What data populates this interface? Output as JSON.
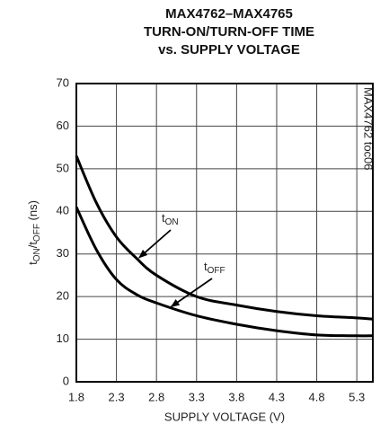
{
  "chart_data": {
    "type": "line",
    "title": [
      "MAX4762–MAX4765",
      "TURN-ON/TURN-OFF TIME",
      "vs. SUPPLY VOLTAGE"
    ],
    "x_label": "SUPPLY VOLTAGE (V)",
    "y_label": [
      {
        "text": "t"
      },
      {
        "text": "ON",
        "sub": true
      },
      {
        "text": "/t"
      },
      {
        "text": "OFF",
        "sub": true
      },
      {
        "text": " (ns)"
      }
    ],
    "side_note": "MAX4762 toc06",
    "xlim": [
      1.8,
      5.5
    ],
    "ylim": [
      0,
      70
    ],
    "xticks": [
      1.8,
      2.3,
      2.8,
      3.3,
      3.8,
      4.3,
      4.8,
      5.3
    ],
    "yticks": [
      0,
      10,
      20,
      30,
      40,
      50,
      60,
      70
    ],
    "grid": true,
    "series": [
      {
        "name": [
          {
            "text": "t"
          },
          {
            "text": "ON",
            "sub": true
          }
        ],
        "color": "#000000",
        "x": [
          1.8,
          2.05,
          2.3,
          2.55,
          2.8,
          3.3,
          3.8,
          4.3,
          4.8,
          5.3,
          5.5
        ],
        "values": [
          53,
          42,
          34,
          29,
          25,
          20,
          18,
          16.5,
          15.5,
          15,
          14.7
        ]
      },
      {
        "name": [
          {
            "text": "t"
          },
          {
            "text": "OFF",
            "sub": true
          }
        ],
        "color": "#000000",
        "x": [
          1.8,
          2.05,
          2.3,
          2.55,
          2.8,
          3.3,
          3.8,
          4.3,
          4.8,
          5.3,
          5.5
        ],
        "values": [
          41,
          31,
          24,
          20.5,
          18.5,
          15.5,
          13.5,
          12,
          11,
          10.8,
          10.8
        ]
      }
    ]
  }
}
